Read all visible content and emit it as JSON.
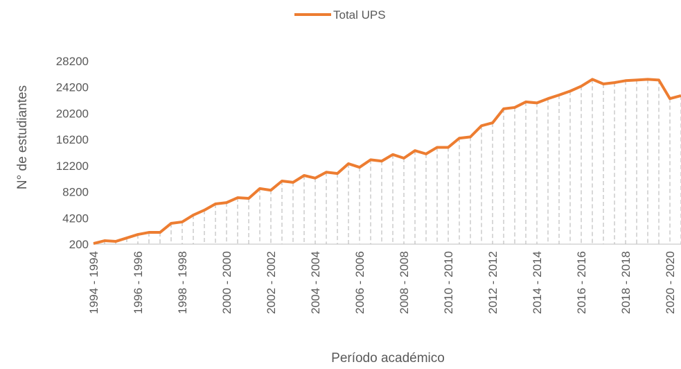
{
  "chart_data": {
    "type": "line",
    "x_label": "Período académico",
    "y_label": "N° de estudiantes",
    "categories": [
      "1994 - 1994",
      null,
      null,
      null,
      "1996 - 1996",
      null,
      null,
      null,
      "1998 - 1998",
      null,
      null,
      null,
      "2000 - 2000",
      null,
      null,
      null,
      "2002 - 2002",
      null,
      null,
      null,
      "2004 - 2004",
      null,
      null,
      null,
      "2006 - 2006",
      null,
      null,
      null,
      "2008 - 2008",
      null,
      null,
      null,
      "2010 - 2010",
      null,
      null,
      null,
      "2012 - 2012",
      null,
      null,
      null,
      "2014 - 2014",
      null,
      null,
      null,
      "2016 - 2016",
      null,
      null,
      null,
      "2018 - 2018",
      null,
      null,
      null,
      "2020 - 2020",
      null
    ],
    "series": [
      {
        "name": "Total UPS",
        "color": "#ed7d31",
        "values": [
          300,
          730,
          620,
          1150,
          1680,
          2000,
          2000,
          3380,
          3600,
          4650,
          5400,
          6350,
          6550,
          7300,
          7200,
          8700,
          8450,
          9850,
          9650,
          10700,
          10300,
          11200,
          11000,
          12500,
          11950,
          13100,
          12900,
          13900,
          13350,
          14500,
          14000,
          15000,
          15000,
          16400,
          16600,
          18300,
          18750,
          20900,
          21100,
          21950,
          21800,
          22450,
          23000,
          23600,
          24350,
          25400,
          24700,
          24900,
          25200,
          25300,
          25400,
          25300,
          22450,
          22900
        ]
      }
    ],
    "ylim": [
      200,
      28200
    ],
    "yticks": [
      200,
      4200,
      8200,
      12200,
      16200,
      20200,
      24200,
      28200
    ],
    "drop_lines": true,
    "legend": "top"
  }
}
